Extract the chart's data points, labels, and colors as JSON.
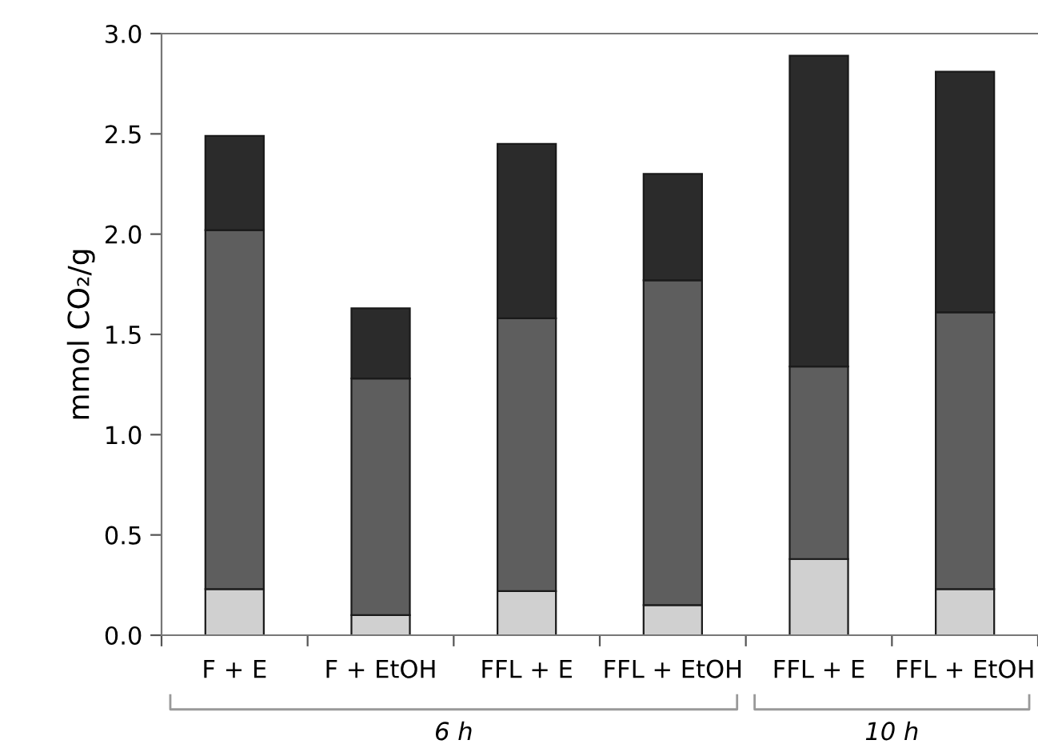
{
  "chart_data": {
    "type": "bar",
    "stacked": true,
    "ylabel": "mmol CO₂/g",
    "categories": [
      "F + E",
      "F + EtOH",
      "FFL + E",
      "FFL + EtOH",
      "FFL + E",
      "FFL + EtOH"
    ],
    "series": [
      {
        "color": "#d0d0d0",
        "values": [
          0.23,
          0.1,
          0.22,
          0.15,
          0.38,
          0.23
        ]
      },
      {
        "color": "#5e5e5e",
        "values": [
          1.79,
          1.18,
          1.36,
          1.62,
          0.96,
          1.38
        ]
      },
      {
        "color": "#2b2b2b",
        "values": [
          0.47,
          0.35,
          0.87,
          0.53,
          1.55,
          1.2
        ]
      }
    ],
    "ylim": [
      0,
      3.0
    ],
    "yticks": [
      {
        "value": 0,
        "label": "0.0"
      },
      {
        "value": 0.5,
        "label": "0.5"
      },
      {
        "value": 1.0,
        "label": "1.0"
      },
      {
        "value": 1.5,
        "label": "1.5"
      },
      {
        "value": 2.0,
        "label": "2.0"
      },
      {
        "value": 2.5,
        "label": "2.5"
      },
      {
        "value": 3.0,
        "label": "3.0"
      }
    ],
    "annotations": [
      "6 h",
      "10 h"
    ],
    "grid": false,
    "legend": false
  }
}
